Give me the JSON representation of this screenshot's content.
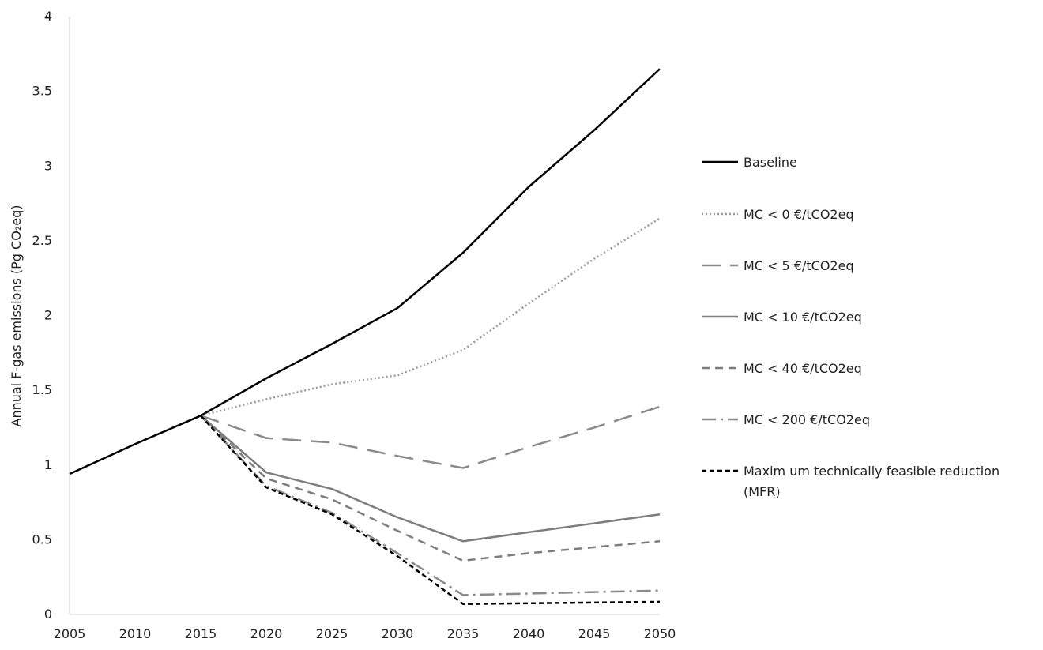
{
  "chart_data": {
    "type": "line",
    "title": "",
    "xlabel": "",
    "ylabel": "Annual F-gas emissions (Pg CO₂eq)",
    "xlim": [
      2005,
      2050
    ],
    "ylim": [
      0,
      4
    ],
    "x_ticks": [
      "2005",
      "2010",
      "2015",
      "2020",
      "2025",
      "2030",
      "2035",
      "2040",
      "2045",
      "2050"
    ],
    "y_ticks": [
      "0",
      "0.5",
      "1",
      "1.5",
      "2",
      "2.5",
      "3",
      "3.5",
      "4"
    ],
    "grid": false,
    "legend_position": "right",
    "series": [
      {
        "name": "Baseline",
        "style": "solid",
        "color": "#000000",
        "width": 2.5,
        "points": [
          [
            2005,
            0.94
          ],
          [
            2010,
            1.14
          ],
          [
            2015,
            1.33
          ],
          [
            2020,
            1.58
          ],
          [
            2025,
            1.81
          ],
          [
            2030,
            2.05
          ],
          [
            2035,
            2.42
          ],
          [
            2040,
            2.86
          ],
          [
            2045,
            3.24
          ],
          [
            2050,
            3.65
          ]
        ]
      },
      {
        "name": "MC < 0 €/tCO2eq",
        "style": "dotted",
        "color": "#9a9a9a",
        "width": 2.5,
        "points": [
          [
            2015,
            1.33
          ],
          [
            2020,
            1.44
          ],
          [
            2025,
            1.54
          ],
          [
            2030,
            1.6
          ],
          [
            2035,
            1.77
          ],
          [
            2040,
            2.08
          ],
          [
            2045,
            2.38
          ],
          [
            2050,
            2.65
          ]
        ]
      },
      {
        "name": "MC < 5 €/tCO2eq",
        "style": "longdash",
        "color": "#8a8a8a",
        "width": 2.5,
        "points": [
          [
            2015,
            1.33
          ],
          [
            2020,
            1.18
          ],
          [
            2025,
            1.15
          ],
          [
            2030,
            1.06
          ],
          [
            2035,
            0.98
          ],
          [
            2040,
            1.12
          ],
          [
            2045,
            1.25
          ],
          [
            2050,
            1.39
          ]
        ]
      },
      {
        "name": "MC < 10 €/tCO2eq",
        "style": "solid",
        "color": "#7d7d7d",
        "width": 2.5,
        "points": [
          [
            2015,
            1.33
          ],
          [
            2020,
            0.95
          ],
          [
            2025,
            0.84
          ],
          [
            2030,
            0.65
          ],
          [
            2035,
            0.49
          ],
          [
            2040,
            0.55
          ],
          [
            2045,
            0.61
          ],
          [
            2050,
            0.67
          ]
        ]
      },
      {
        "name": "MC < 40 €/tCO2eq",
        "style": "dashed",
        "color": "#7d7d7d",
        "width": 2.5,
        "points": [
          [
            2015,
            1.33
          ],
          [
            2020,
            0.91
          ],
          [
            2025,
            0.77
          ],
          [
            2030,
            0.56
          ],
          [
            2035,
            0.36
          ],
          [
            2040,
            0.41
          ],
          [
            2045,
            0.45
          ],
          [
            2050,
            0.49
          ]
        ]
      },
      {
        "name": "MC < 200 €/tCO2eq",
        "style": "dashdot",
        "color": "#8a8a8a",
        "width": 2.5,
        "points": [
          [
            2015,
            1.33
          ],
          [
            2020,
            0.86
          ],
          [
            2025,
            0.68
          ],
          [
            2030,
            0.41
          ],
          [
            2035,
            0.13
          ],
          [
            2040,
            0.14
          ],
          [
            2045,
            0.15
          ],
          [
            2050,
            0.16
          ]
        ]
      },
      {
        "name": "Maximum technically feasible reduction (MFR)",
        "name_lines": [
          "Maxim um  technically feasible reduction",
          "(MFR)"
        ],
        "style": "shortdash",
        "color": "#000000",
        "width": 2.5,
        "points": [
          [
            2015,
            1.33
          ],
          [
            2020,
            0.85
          ],
          [
            2025,
            0.67
          ],
          [
            2030,
            0.39
          ],
          [
            2035,
            0.07
          ],
          [
            2040,
            0.075
          ],
          [
            2045,
            0.08
          ],
          [
            2050,
            0.085
          ]
        ]
      }
    ]
  }
}
